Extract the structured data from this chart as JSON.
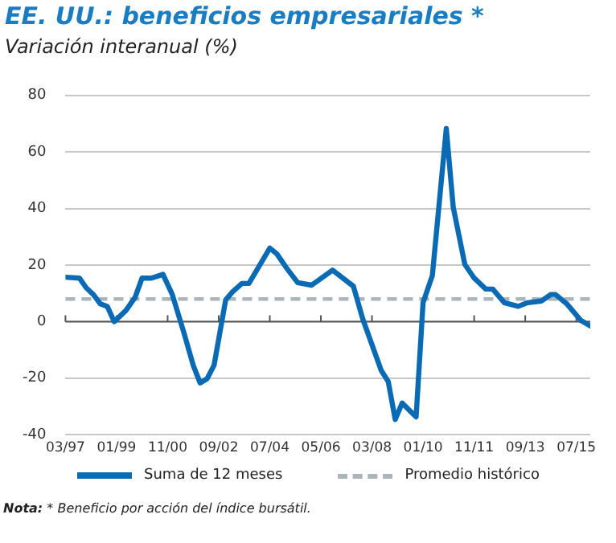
{
  "chart_data": {
    "type": "line",
    "title": "EE. UU.: beneficios empresariales *",
    "subtitle": "Variación interanual (%)",
    "annotations": [
      "Nota: * Beneficio por acción del índice bursátil."
    ],
    "x": [
      "1997-03",
      "1997-09",
      "1997-12",
      "1998-03",
      "1998-06",
      "1998-09",
      "1998-12",
      "1999-05",
      "1999-09",
      "1999-12",
      "2000-04",
      "2000-09",
      "2001-01",
      "2001-06",
      "2001-10",
      "2002-01",
      "2002-04",
      "2002-07",
      "2002-12",
      "2003-03",
      "2003-07",
      "2003-10",
      "2004-07",
      "2004-10",
      "2005-02",
      "2005-07",
      "2006-01",
      "2006-10",
      "2007-07",
      "2007-11",
      "2008-07",
      "2008-10",
      "2009-01",
      "2009-04",
      "2009-10",
      "2010-01",
      "2010-05",
      "2010-11",
      "2011-02",
      "2011-07",
      "2011-11",
      "2012-04",
      "2012-07",
      "2012-12",
      "2013-06",
      "2013-10",
      "2014-04",
      "2014-08",
      "2014-10",
      "2015-03",
      "2015-09",
      "2016-01"
    ],
    "series": [
      {
        "name": "Suma de 12 meses",
        "color": "#0a6ab4",
        "values": [
          15.7,
          15.4,
          11.9,
          9.6,
          6.3,
          5.4,
          0,
          3.9,
          8.6,
          15.4,
          15.4,
          16.7,
          9.6,
          -3.9,
          -15.4,
          -21.7,
          -20.2,
          -15.4,
          7.7,
          10.6,
          13.5,
          13.5,
          26,
          24,
          19.2,
          13.8,
          12.9,
          18.2,
          12.5,
          1,
          -17.3,
          -21.2,
          -34.6,
          -28.8,
          -33.7,
          6.7,
          16.3,
          68.3,
          40.4,
          20.2,
          15.4,
          11.5,
          11.5,
          6.7,
          5.4,
          6.7,
          7.3,
          9.6,
          9.6,
          6.2,
          0.4,
          -1.5
        ]
      }
    ],
    "ref_lines": [
      {
        "axis": "y",
        "value": 8,
        "label": "Promedio histórico",
        "color": "#a9b4bb",
        "line_style": "dashed"
      }
    ],
    "xlim": [
      "1997-03",
      "2016-01"
    ],
    "xticks": [
      {
        "value": "1997-03",
        "label": "03/97"
      },
      {
        "value": "1999-01",
        "label": "01/99"
      },
      {
        "value": "2000-11",
        "label": "11/00"
      },
      {
        "value": "2002-09",
        "label": "09/02"
      },
      {
        "value": "2004-07",
        "label": "07/04"
      },
      {
        "value": "2006-05",
        "label": "05/06"
      },
      {
        "value": "2008-03",
        "label": "03/08"
      },
      {
        "value": "2010-01",
        "label": "01/10"
      },
      {
        "value": "2011-11",
        "label": "11/11"
      },
      {
        "value": "2013-09",
        "label": "09/13"
      },
      {
        "value": "2015-07",
        "label": "07/15"
      }
    ],
    "ylim": [
      -40,
      80
    ],
    "yticks": [
      -40,
      -20,
      0,
      20,
      40,
      60,
      80
    ],
    "grid": "y",
    "legend": "bottom",
    "marker": "none",
    "line_style": "solid"
  }
}
